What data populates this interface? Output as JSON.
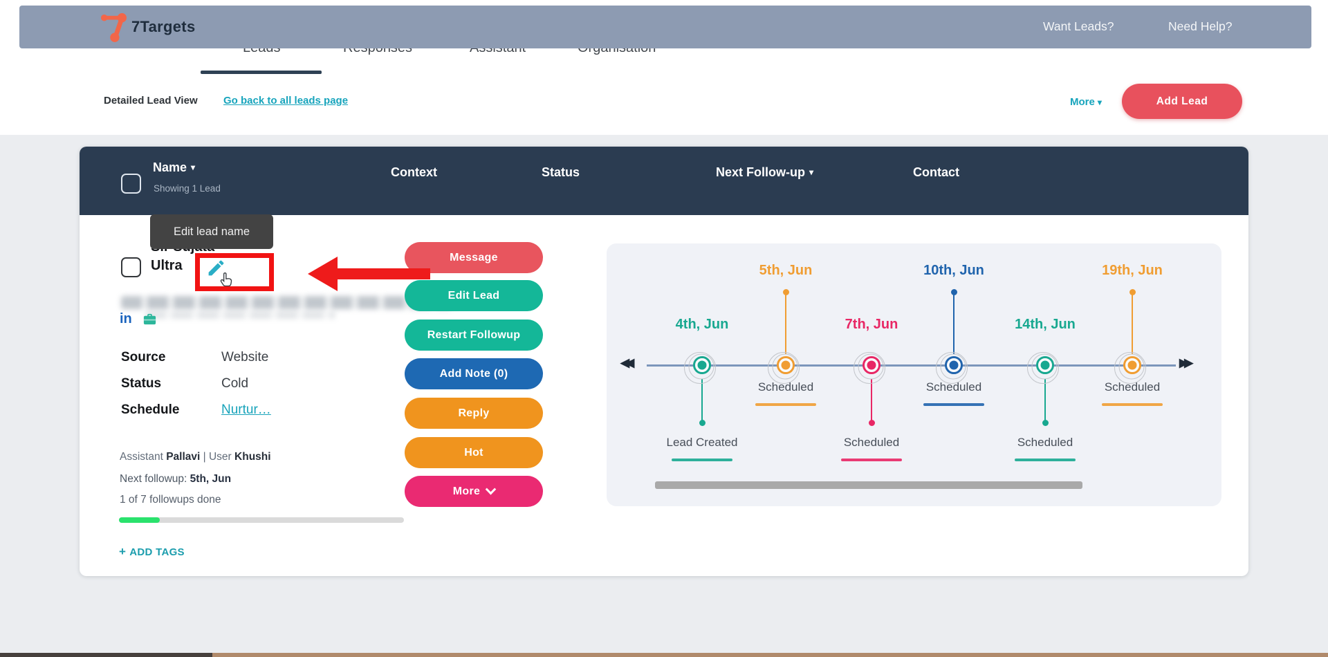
{
  "topbar": {
    "brand": "7Targets",
    "links": [
      {
        "label": "Want Leads?"
      },
      {
        "label": "Need Help?"
      }
    ]
  },
  "nav": {
    "tabs": [
      "Leads",
      "Responses",
      "Assistant",
      "Organisation"
    ],
    "active_tab": "Leads"
  },
  "toolbar": {
    "title": "Detailed Lead View",
    "back_link": "Go back to all leads page",
    "more": "More",
    "add_lead": "Add Lead"
  },
  "list_header": {
    "name": "Name",
    "showing": "Showing 1 Lead",
    "context": "Context",
    "status": "Status",
    "next_followup": "Next Follow-up",
    "contact": "Contact"
  },
  "tooltip": {
    "text": "Edit lead name"
  },
  "lead": {
    "name_line1": "Sir Sujata",
    "name_line2": "Ultra",
    "email_redacted": true,
    "fields": [
      {
        "label": "Source",
        "value": "Website",
        "link": false
      },
      {
        "label": "Status",
        "value": "Cold",
        "link": false
      },
      {
        "label": "Schedule",
        "value": "Nurtur…",
        "link": true
      }
    ],
    "assistant_label": "Assistant",
    "assistant_name": "Pallavi",
    "divider": "|",
    "user_label": "User",
    "user_name": "Khushi",
    "next_followup_label": "Next followup:",
    "next_followup_value": "5th, Jun",
    "followups_progress_text": "1 of 7 followups done",
    "followups_done": 1,
    "followups_total": 7,
    "progress_color": "#2ae26d",
    "add_tags_plus": "+",
    "add_tags_label": "ADD TAGS"
  },
  "actions": [
    {
      "label": "Message",
      "color": "#e8555e",
      "chevron": false
    },
    {
      "label": "Edit Lead",
      "color": "#14b798",
      "chevron": false
    },
    {
      "label": "Restart Followup",
      "color": "#14b798",
      "chevron": false
    },
    {
      "label": "Add Note (0)",
      "color": "#1e69b3",
      "chevron": false
    },
    {
      "label": "Reply",
      "color": "#f0941e",
      "chevron": false
    },
    {
      "label": "Hot",
      "color": "#f0941e",
      "chevron": false
    },
    {
      "label": "More",
      "color": "#ea2a72",
      "chevron": true
    }
  ],
  "timeline": {
    "events": [
      {
        "date": "4th, Jun",
        "status": "Lead Created",
        "color": "#18a890",
        "position": "low"
      },
      {
        "date": "5th, Jun",
        "status": "Scheduled",
        "color": "#f09d32",
        "position": "high"
      },
      {
        "date": "7th, Jun",
        "status": "Scheduled",
        "color": "#e82765",
        "position": "low"
      },
      {
        "date": "10th, Jun",
        "status": "Scheduled",
        "color": "#2064ad",
        "position": "high"
      },
      {
        "date": "14th, Jun",
        "status": "Scheduled",
        "color": "#18a890",
        "position": "low"
      },
      {
        "date": "19th, Jun",
        "status": "Scheduled",
        "color": "#f09d32",
        "position": "high"
      }
    ]
  }
}
